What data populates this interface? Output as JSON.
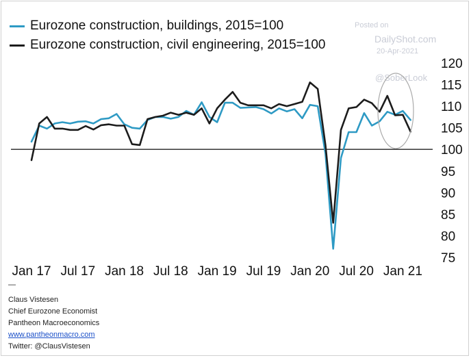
{
  "colors": {
    "buildings": "#2e9ac4",
    "civil": "#1c1c1c",
    "baseline": "#222222",
    "circle": "#aaaaaa"
  },
  "watermark": {
    "posted": "Posted on",
    "site": "DailyShot.com",
    "date": "20-Apr-2021",
    "handle": "@SoberLook"
  },
  "credits": {
    "dash": "—",
    "name": "Claus Vistesen",
    "role": "Chief Eurozone Economist",
    "company": "Pantheon Macroeconomics",
    "website": "www.pantheonmacro.com",
    "twitter": "Twitter: @ClausVistesen"
  },
  "chart_data": {
    "type": "line",
    "title": "",
    "xlabel": "",
    "ylabel": "",
    "ylim": [
      75,
      120
    ],
    "y_ticks": [
      75,
      80,
      85,
      90,
      95,
      100,
      105,
      110,
      115,
      120
    ],
    "x_ticks": [
      "Jan 17",
      "Jul 17",
      "Jan 18",
      "Jul 18",
      "Jan 19",
      "Jul 19",
      "Jan 20",
      "Jul 20",
      "Jan 21"
    ],
    "reference_line": 100,
    "legend_position": "top-left",
    "x": [
      "2017-01",
      "2017-02",
      "2017-03",
      "2017-04",
      "2017-05",
      "2017-06",
      "2017-07",
      "2017-08",
      "2017-09",
      "2017-10",
      "2017-11",
      "2017-12",
      "2018-01",
      "2018-02",
      "2018-03",
      "2018-04",
      "2018-05",
      "2018-06",
      "2018-07",
      "2018-08",
      "2018-09",
      "2018-10",
      "2018-11",
      "2018-12",
      "2019-01",
      "2019-02",
      "2019-03",
      "2019-04",
      "2019-05",
      "2019-06",
      "2019-07",
      "2019-08",
      "2019-09",
      "2019-10",
      "2019-11",
      "2019-12",
      "2020-01",
      "2020-02",
      "2020-03",
      "2020-04",
      "2020-05",
      "2020-06",
      "2020-07",
      "2020-08",
      "2020-09",
      "2020-10",
      "2020-11",
      "2020-12",
      "2021-01",
      "2021-02"
    ],
    "series": [
      {
        "name": "Eurozone construction, buildings, 2015=100",
        "values": [
          101.8,
          105.5,
          104.8,
          106.0,
          106.3,
          106.0,
          106.4,
          106.5,
          106.0,
          107.0,
          107.2,
          108.2,
          105.8,
          105.0,
          104.8,
          106.8,
          107.5,
          107.5,
          107.1,
          107.5,
          108.9,
          108.0,
          110.9,
          107.5,
          106.3,
          110.8,
          110.8,
          109.6,
          109.7,
          109.8,
          109.3,
          108.3,
          109.5,
          108.8,
          109.3,
          107.2,
          110.3,
          110.0,
          99.0,
          77.0,
          98.0,
          104.0,
          104.0,
          108.4,
          105.5,
          106.5,
          108.7,
          108.0,
          108.9,
          106.8
        ]
      },
      {
        "name": "Eurozone construction, civil engineering, 2015=100",
        "values": [
          97.5,
          106.0,
          107.5,
          104.8,
          104.8,
          104.5,
          104.5,
          105.4,
          104.6,
          105.6,
          105.8,
          105.5,
          105.5,
          101.2,
          101.0,
          107.0,
          107.5,
          107.8,
          108.5,
          108.0,
          108.5,
          108.0,
          109.5,
          106.0,
          109.5,
          111.5,
          113.3,
          110.8,
          110.2,
          110.2,
          110.2,
          109.5,
          110.5,
          110.0,
          110.5,
          111.0,
          115.5,
          114.0,
          101.0,
          83.0,
          104.5,
          109.5,
          109.8,
          111.5,
          110.7,
          108.7,
          112.4,
          107.9,
          108.0,
          104.1
        ]
      }
    ]
  }
}
